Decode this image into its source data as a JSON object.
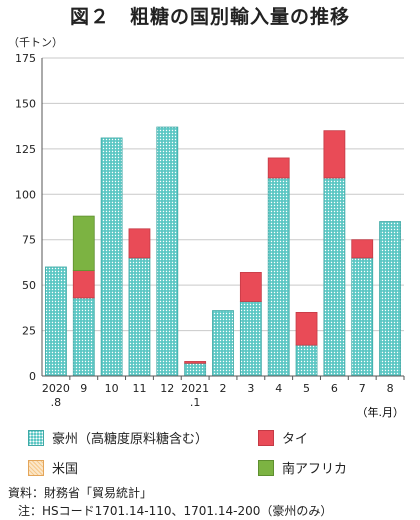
{
  "title": "図２　粗糖の国別輸入量の推移",
  "unit": "（千トン）",
  "chart_data": {
    "type": "bar",
    "stacked": true,
    "categories": [
      "2020\n.8",
      "9",
      "10",
      "11",
      "12",
      "2021\n.1",
      "2",
      "3",
      "4",
      "5",
      "6",
      "7",
      "8"
    ],
    "series": [
      {
        "name": "豪州（高糖度原料糖含む）",
        "color": "#5cc7c4",
        "values": [
          60,
          43,
          131,
          65,
          137,
          7,
          36,
          41,
          109,
          17,
          109,
          65,
          85
        ]
      },
      {
        "name": "タイ",
        "color": "#e94b57",
        "values": [
          0,
          15,
          0,
          16,
          0,
          1,
          0,
          16,
          11,
          18,
          26,
          10,
          0
        ]
      },
      {
        "name": "米国",
        "color": "#f7c98b",
        "values": [
          0,
          0,
          0,
          0,
          0,
          0,
          0,
          0,
          0,
          0,
          0,
          0,
          0
        ]
      },
      {
        "name": "南アフリカ",
        "color": "#7cb342",
        "values": [
          0,
          30,
          0,
          0,
          0,
          0,
          0,
          0,
          0,
          0,
          0,
          0,
          0
        ]
      }
    ],
    "ylim": [
      0,
      175
    ],
    "yticks": [
      0,
      25,
      50,
      75,
      100,
      125,
      150,
      175
    ],
    "xlabel": "（年.月）",
    "grid": "horizontal",
    "legend_position": "bottom"
  },
  "notes": {
    "source": "資料：財務省「貿易統計」",
    "note": "注：HSコード1701.14-110、1701.14-200（豪州のみ）"
  }
}
